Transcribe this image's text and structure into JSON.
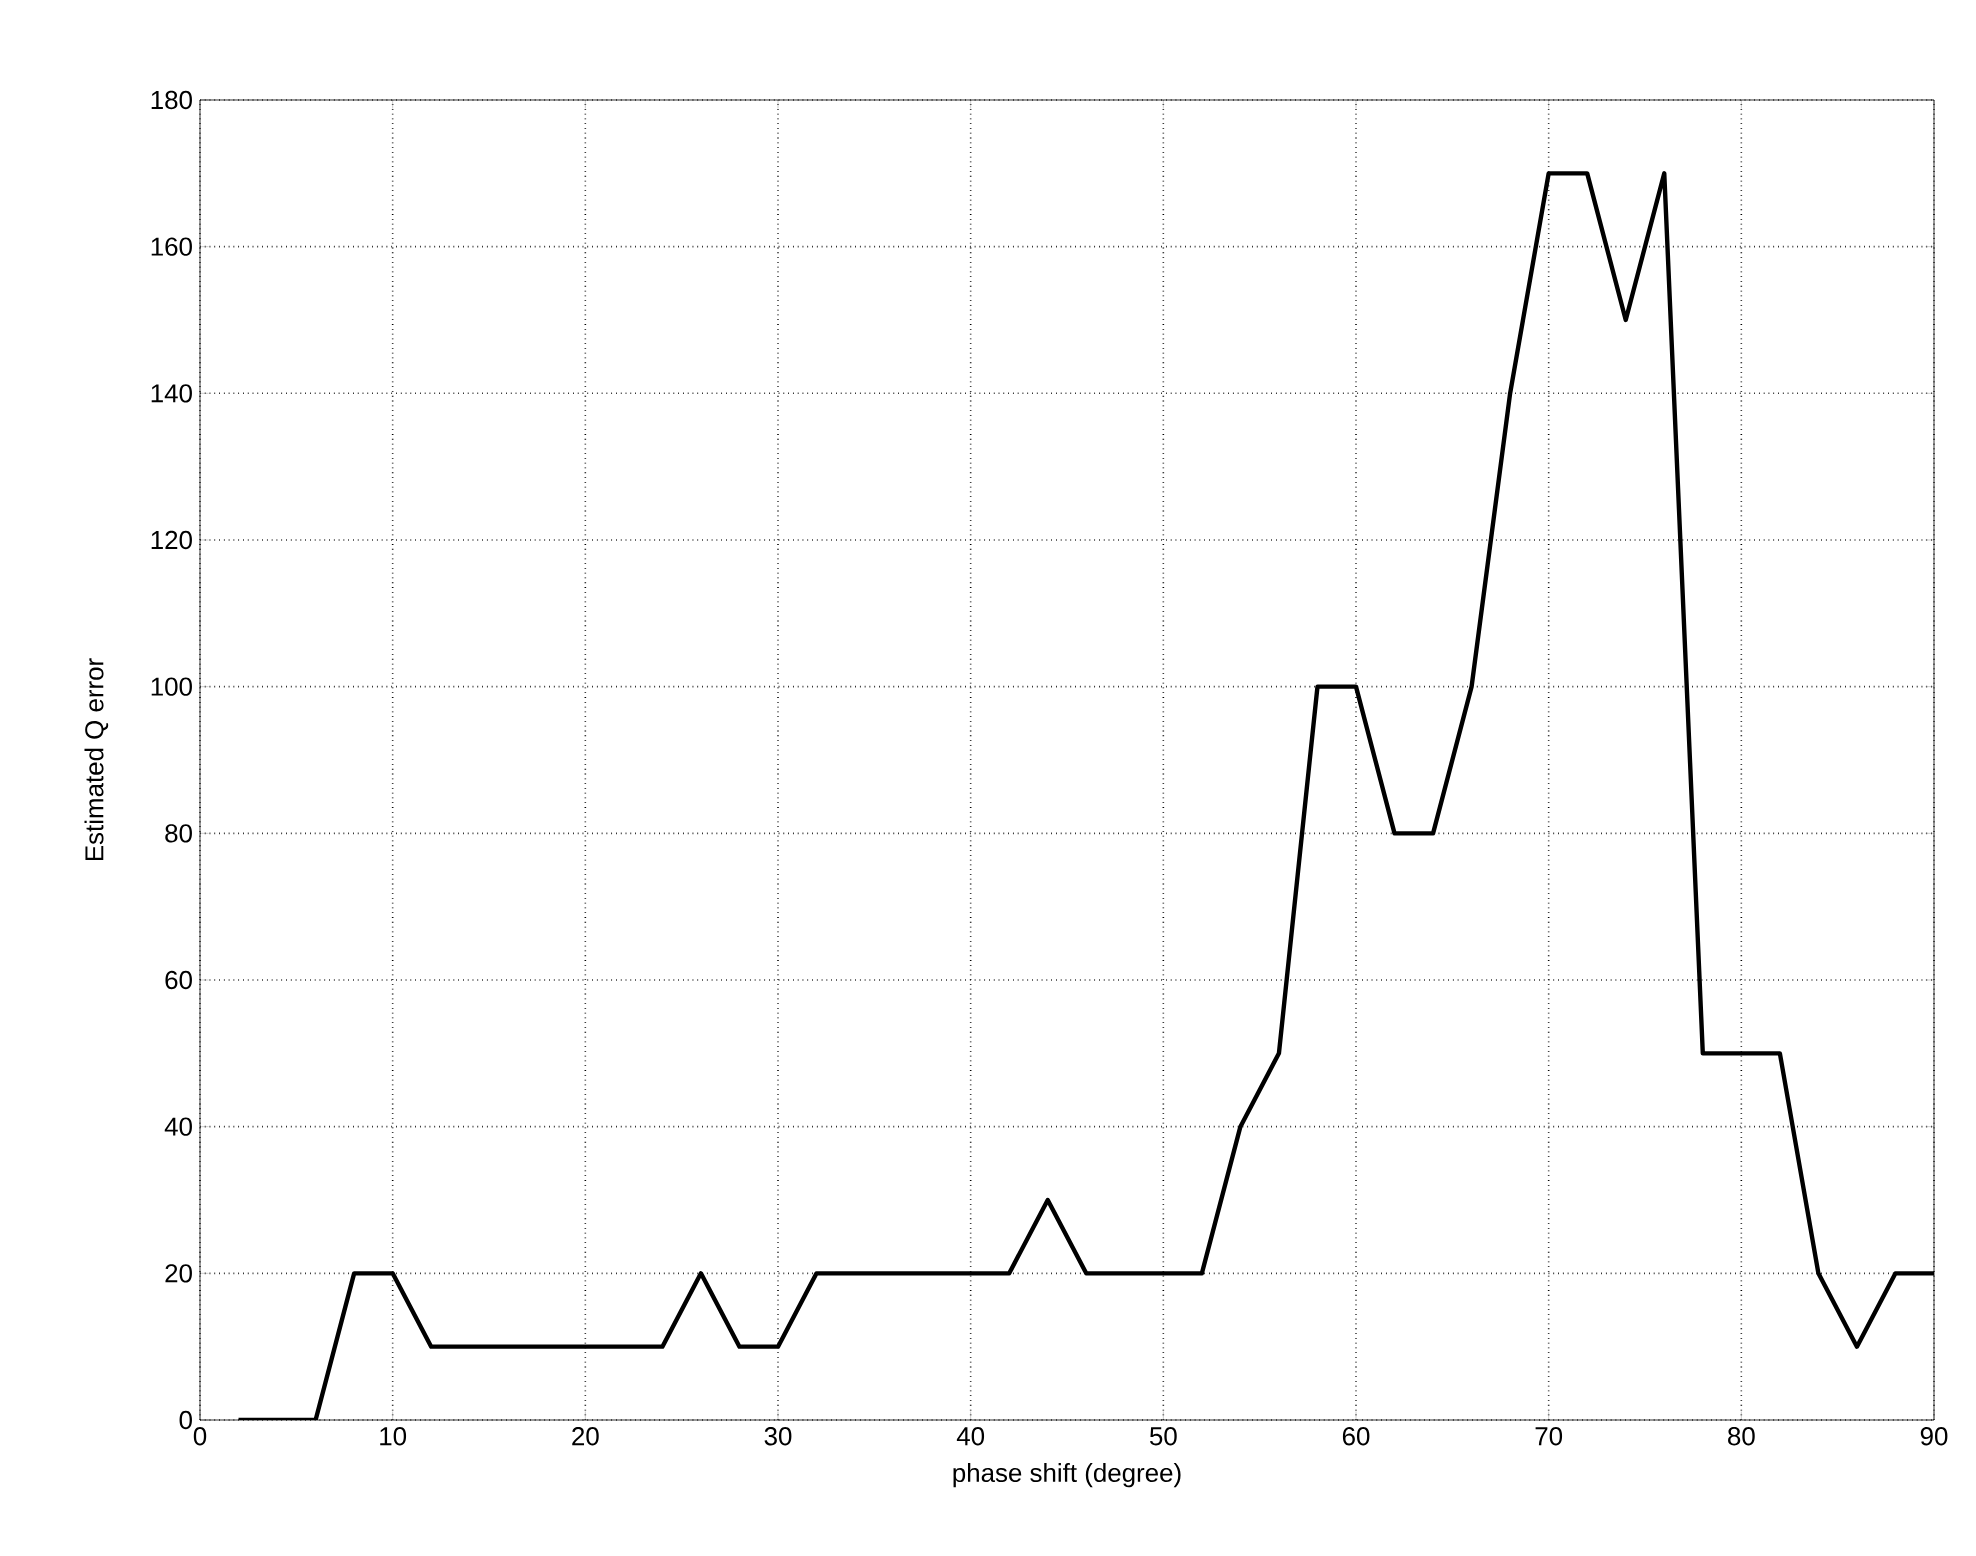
{
  "chart_data": {
    "type": "line",
    "xlabel": "phase shift (degree)",
    "ylabel": "Estimated Q error",
    "x": [
      2,
      4,
      6,
      8,
      10,
      12,
      14,
      16,
      18,
      20,
      22,
      24,
      26,
      28,
      30,
      32,
      34,
      36,
      38,
      40,
      42,
      44,
      46,
      48,
      50,
      52,
      54,
      56,
      58,
      60,
      62,
      64,
      66,
      68,
      70,
      72,
      74,
      76,
      78,
      80,
      82,
      84,
      86,
      88,
      90
    ],
    "series": [
      {
        "color": "#000000",
        "values": [
          0,
          0,
          0,
          20,
          20,
          10,
          10,
          10,
          10,
          10,
          10,
          10,
          20,
          10,
          10,
          20,
          20,
          20,
          20,
          20,
          20,
          30,
          20,
          20,
          20,
          20,
          40,
          50,
          100,
          100,
          80,
          80,
          100,
          140,
          170,
          170,
          150,
          170,
          50,
          50,
          50,
          20,
          10,
          20,
          20
        ]
      }
    ],
    "xlim": [
      0,
      90
    ],
    "ylim": [
      0,
      180
    ],
    "xticks": [
      0,
      10,
      20,
      30,
      40,
      50,
      60,
      70,
      80,
      90
    ],
    "yticks": [
      0,
      20,
      40,
      60,
      80,
      100,
      120,
      140,
      160,
      180
    ],
    "grid": true,
    "line_style": "solid",
    "marker": "none"
  }
}
